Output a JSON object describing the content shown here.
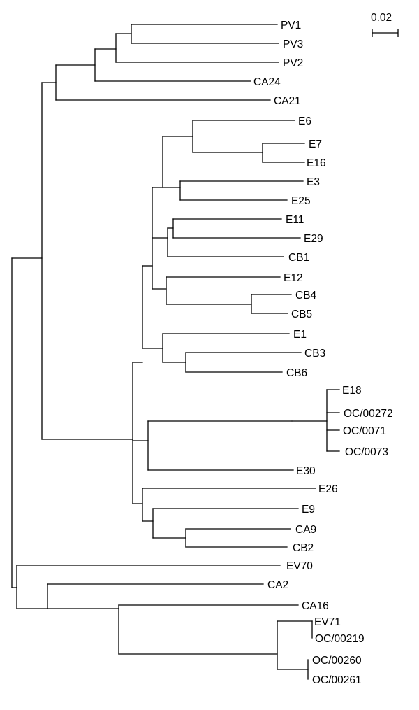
{
  "scale_bar": {
    "label": "0.02"
  },
  "leaves": [
    "PV1",
    "PV3",
    "PV2",
    "CA24",
    "CA21",
    "E6",
    "E7",
    "E16",
    "E3",
    "E25",
    "E11",
    "E29",
    "CB1",
    "E12",
    "CB4",
    "CB5",
    "E1",
    "CB3",
    "CB6",
    "E18",
    "OC/00272",
    "OC/0071",
    "OC/0073",
    "E30",
    "E26",
    "E9",
    "CA9",
    "CB2",
    "EV70",
    "CA2",
    "CA16",
    "EV71",
    "OC/00219",
    "OC/00260",
    "OC/00261"
  ]
}
